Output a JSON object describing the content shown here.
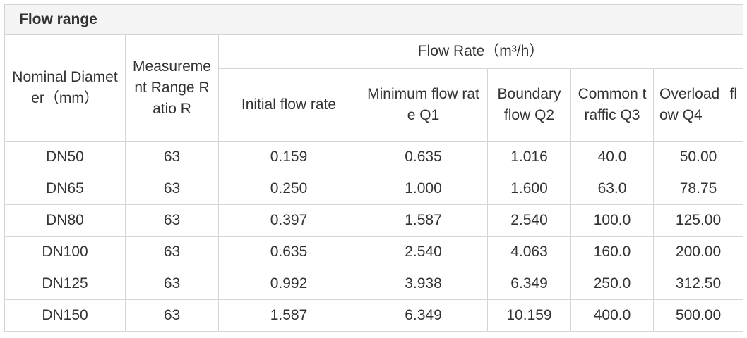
{
  "table": {
    "title": "Flow range",
    "header": {
      "nominal_diameter": "Nominal Diameter（mm）",
      "range_ratio": "Measurement Range Ratio R",
      "flow_rate": "Flow Rate（m³/h）",
      "sub": [
        "Initial flow rate",
        "Minimum flow rate Q1",
        "Boundary flow Q2",
        "Common traffic Q3",
        "Overload flow Q4"
      ]
    },
    "rows": [
      [
        "DN50",
        "63",
        "0.159",
        "0.635",
        "1.016",
        "40.0",
        "50.00"
      ],
      [
        "DN65",
        "63",
        "0.250",
        "1.000",
        "1.600",
        "63.0",
        "78.75"
      ],
      [
        "DN80",
        "63",
        "0.397",
        "1.587",
        "2.540",
        "100.0",
        "125.00"
      ],
      [
        "DN100",
        "63",
        "0.635",
        "2.540",
        "4.063",
        "160.0",
        "200.00"
      ],
      [
        "DN125",
        "63",
        "0.992",
        "3.938",
        "6.349",
        "250.0",
        "312.50"
      ],
      [
        "DN150",
        "63",
        "1.587",
        "6.349",
        "10.159",
        "400.0",
        "500.00"
      ]
    ]
  }
}
